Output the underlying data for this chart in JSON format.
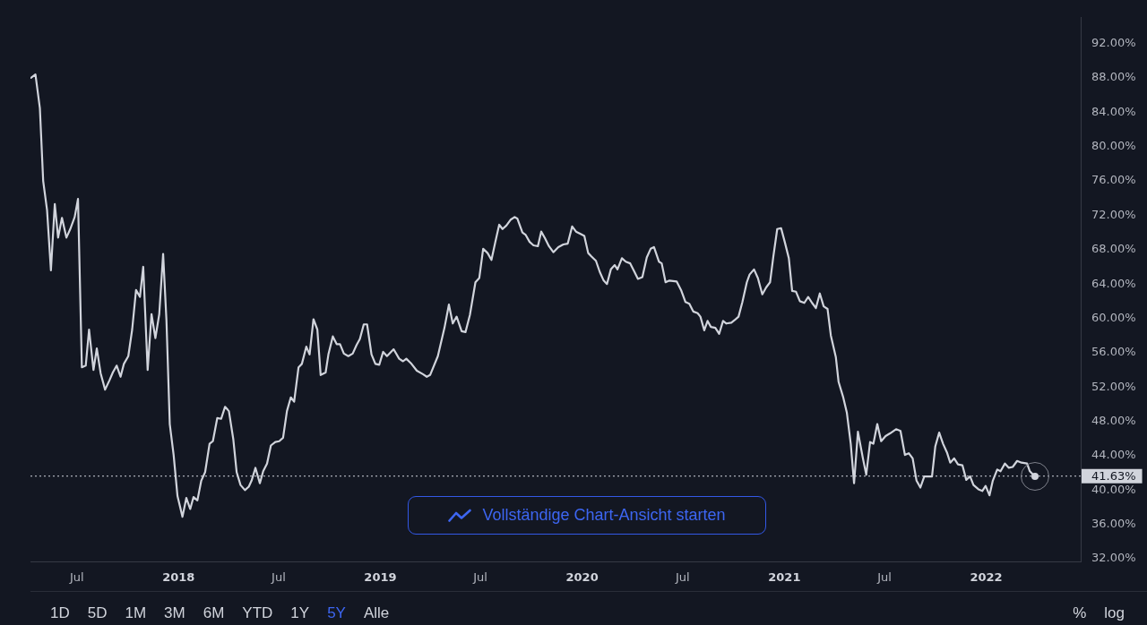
{
  "chart_data": {
    "type": "line",
    "x": [
      "2017-04-09",
      "2017-04-17",
      "2017-04-25",
      "2017-05-01",
      "2017-05-08",
      "2017-05-15",
      "2017-05-22",
      "2017-05-28",
      "2017-06-04",
      "2017-06-12",
      "2017-06-19",
      "2017-06-27",
      "2017-07-03",
      "2017-07-10",
      "2017-07-17",
      "2017-07-23",
      "2017-07-31",
      "2017-08-06",
      "2017-08-13",
      "2017-08-21",
      "2017-08-29",
      "2017-09-04",
      "2017-09-11",
      "2017-09-18",
      "2017-09-24",
      "2017-10-02",
      "2017-10-09",
      "2017-10-16",
      "2017-10-23",
      "2017-10-29",
      "2017-11-06",
      "2017-11-13",
      "2017-11-20",
      "2017-11-27",
      "2017-12-04",
      "2017-12-10",
      "2017-12-16",
      "2017-12-23",
      "2017-12-30",
      "2018-01-08",
      "2018-01-15",
      "2018-01-22",
      "2018-01-28",
      "2018-02-04",
      "2018-02-11",
      "2018-02-18",
      "2018-02-26",
      "2018-03-04",
      "2018-03-12",
      "2018-03-19",
      "2018-03-26",
      "2018-04-02",
      "2018-04-10",
      "2018-04-16",
      "2018-04-23",
      "2018-05-01",
      "2018-05-08",
      "2018-05-13",
      "2018-05-20",
      "2018-05-28",
      "2018-06-03",
      "2018-06-10",
      "2018-06-17",
      "2018-06-25",
      "2018-07-02",
      "2018-07-09",
      "2018-07-16",
      "2018-07-23",
      "2018-07-29",
      "2018-08-06",
      "2018-08-12",
      "2018-08-20",
      "2018-08-26",
      "2018-09-02",
      "2018-09-09",
      "2018-09-15",
      "2018-09-24",
      "2018-09-29",
      "2018-10-07",
      "2018-10-14",
      "2018-10-20",
      "2018-10-27",
      "2018-11-04",
      "2018-11-12",
      "2018-11-19",
      "2018-11-25",
      "2018-12-02",
      "2018-12-08",
      "2018-12-16",
      "2018-12-23",
      "2018-12-30",
      "2019-01-06",
      "2019-01-13",
      "2019-01-25",
      "2019-02-04",
      "2019-02-11",
      "2019-02-17",
      "2019-02-25",
      "2019-03-08",
      "2019-03-19",
      "2019-03-26",
      "2019-04-01",
      "2019-04-15",
      "2019-04-27",
      "2019-05-05",
      "2019-05-12",
      "2019-05-19",
      "2019-05-28",
      "2019-06-04",
      "2019-06-12",
      "2019-06-22",
      "2019-06-29",
      "2019-07-06",
      "2019-07-14",
      "2019-07-21",
      "2019-07-28",
      "2019-08-04",
      "2019-08-10",
      "2019-08-17",
      "2019-08-25",
      "2019-09-01",
      "2019-09-06",
      "2019-09-15",
      "2019-09-21",
      "2019-09-28",
      "2019-10-05",
      "2019-10-13",
      "2019-10-19",
      "2019-10-26",
      "2019-11-02",
      "2019-11-10",
      "2019-11-19",
      "2019-11-28",
      "2019-12-06",
      "2019-12-14",
      "2019-12-21",
      "2019-12-30",
      "2020-01-05",
      "2020-01-12",
      "2020-01-18",
      "2020-01-26",
      "2020-02-02",
      "2020-02-09",
      "2020-02-15",
      "2020-02-22",
      "2020-02-29",
      "2020-03-05",
      "2020-03-13",
      "2020-03-20",
      "2020-03-28",
      "2020-04-04",
      "2020-04-11",
      "2020-04-19",
      "2020-04-27",
      "2020-05-04",
      "2020-05-10",
      "2020-05-19",
      "2020-05-24",
      "2020-05-31",
      "2020-06-07",
      "2020-06-20",
      "2020-06-28",
      "2020-07-06",
      "2020-07-13",
      "2020-07-20",
      "2020-07-28",
      "2020-08-02",
      "2020-08-09",
      "2020-08-15",
      "2020-08-21",
      "2020-08-29",
      "2020-09-05",
      "2020-09-12",
      "2020-09-18",
      "2020-09-27",
      "2020-10-03",
      "2020-10-10",
      "2020-10-17",
      "2020-10-25",
      "2020-10-30",
      "2020-11-07",
      "2020-11-14",
      "2020-11-22",
      "2020-11-29",
      "2020-12-06",
      "2020-12-12",
      "2020-12-19",
      "2020-12-26",
      "2021-01-02",
      "2021-01-09",
      "2021-01-15",
      "2021-01-22",
      "2021-01-29",
      "2021-02-06",
      "2021-02-13",
      "2021-02-20",
      "2021-02-27",
      "2021-03-06",
      "2021-03-13",
      "2021-03-20",
      "2021-03-26",
      "2021-04-04",
      "2021-04-09",
      "2021-04-17",
      "2021-04-24",
      "2021-05-01",
      "2021-05-07",
      "2021-05-14",
      "2021-05-23",
      "2021-05-29",
      "2021-06-05",
      "2021-06-11",
      "2021-06-18",
      "2021-06-25",
      "2021-07-03",
      "2021-07-11",
      "2021-07-22",
      "2021-07-30",
      "2021-08-07",
      "2021-08-14",
      "2021-08-21",
      "2021-08-28",
      "2021-09-04",
      "2021-09-11",
      "2021-09-18",
      "2021-09-25",
      "2021-10-01",
      "2021-10-08",
      "2021-10-15",
      "2021-10-22",
      "2021-10-28",
      "2021-11-04",
      "2021-11-11",
      "2021-11-19",
      "2021-11-26",
      "2021-12-03",
      "2021-12-09",
      "2021-12-18",
      "2021-12-25",
      "2021-12-31",
      "2022-01-07",
      "2022-01-13",
      "2022-01-21",
      "2022-01-27",
      "2022-02-04",
      "2022-02-11",
      "2022-02-18",
      "2022-02-26",
      "2022-03-06",
      "2022-03-16",
      "2022-03-21",
      "2022-03-30"
    ],
    "series": [
      {
        "color": "#d1d4dc",
        "values": [
          88.0,
          88.4,
          84.5,
          76.0,
          72.6,
          65.6,
          73.3,
          69.4,
          71.7,
          69.4,
          70.4,
          71.8,
          73.9,
          54.3,
          54.5,
          58.7,
          54.0,
          56.5,
          53.6,
          51.7,
          52.8,
          53.7,
          54.5,
          53.2,
          54.7,
          55.6,
          58.7,
          63.3,
          62.5,
          66.0,
          54.0,
          60.5,
          57.7,
          60.5,
          67.5,
          59.8,
          47.7,
          44.1,
          39.3,
          36.9,
          39.1,
          37.8,
          39.2,
          38.8,
          41.1,
          42.1,
          45.4,
          45.7,
          48.4,
          48.3,
          49.7,
          49.2,
          45.9,
          42.1,
          40.6,
          40.0,
          40.4,
          41.1,
          42.6,
          40.8,
          42.2,
          43.1,
          45.2,
          45.6,
          45.7,
          46.1,
          49.2,
          50.8,
          50.3,
          54.3,
          54.7,
          56.7,
          55.8,
          59.9,
          58.7,
          53.4,
          53.7,
          55.8,
          57.9,
          57.0,
          57.0,
          55.9,
          55.6,
          55.9,
          56.9,
          57.6,
          59.3,
          59.3,
          55.8,
          54.7,
          54.6,
          56.1,
          55.6,
          56.4,
          55.3,
          55.0,
          55.3,
          54.8,
          53.9,
          53.5,
          53.2,
          53.4,
          55.6,
          58.9,
          61.6,
          59.4,
          60.2,
          58.5,
          58.4,
          60.4,
          64.2,
          64.7,
          68.1,
          67.6,
          66.8,
          68.9,
          70.9,
          70.4,
          70.8,
          71.5,
          71.8,
          71.6,
          70.0,
          69.7,
          68.9,
          68.5,
          68.4,
          70.1,
          69.3,
          68.4,
          67.7,
          68.3,
          68.6,
          68.7,
          70.7,
          70.1,
          69.8,
          69.6,
          67.6,
          67.2,
          66.7,
          65.4,
          64.4,
          64.0,
          65.7,
          66.2,
          65.7,
          67.0,
          66.6,
          66.4,
          65.5,
          64.6,
          64.8,
          67.1,
          68.1,
          68.3,
          66.6,
          66.4,
          64.2,
          64.4,
          64.3,
          63.3,
          61.9,
          61.7,
          60.8,
          60.6,
          60.2,
          58.6,
          59.7,
          59.0,
          58.9,
          58.2,
          59.7,
          59.4,
          59.5,
          59.8,
          60.2,
          61.9,
          64.2,
          65.1,
          65.7,
          64.7,
          62.8,
          63.6,
          64.2,
          67.2,
          70.4,
          70.5,
          68.8,
          67.0,
          63.2,
          63.1,
          62.0,
          61.8,
          62.5,
          61.8,
          61.2,
          62.9,
          61.4,
          61.1,
          58.0,
          55.5,
          52.6,
          50.9,
          49.0,
          45.4,
          40.8,
          46.8,
          43.7,
          41.8,
          45.6,
          45.4,
          47.7,
          45.7,
          46.3,
          46.6,
          47.1,
          46.9,
          44.1,
          44.3,
          43.7,
          41.1,
          40.3,
          41.6,
          41.6,
          41.6,
          45.1,
          46.7,
          45.4,
          44.4,
          43.2,
          43.7,
          43.0,
          42.9,
          41.2,
          41.6,
          40.6,
          40.1,
          39.9,
          40.5,
          39.4,
          41.1,
          42.4,
          42.2,
          43.1,
          42.6,
          42.7,
          43.4,
          43.2,
          43.1,
          42.2,
          41.6
        ]
      }
    ],
    "xlim": [
      "2017-04-08",
      "2022-06-21"
    ],
    "xticks": [
      {
        "value": "2017-07-01",
        "label": "Jul"
      },
      {
        "value": "2018-01-01",
        "label": "2018"
      },
      {
        "value": "2018-07-01",
        "label": "Jul"
      },
      {
        "value": "2019-01-01",
        "label": "2019"
      },
      {
        "value": "2019-07-01",
        "label": "Jul"
      },
      {
        "value": "2020-01-01",
        "label": "2020"
      },
      {
        "value": "2020-07-01",
        "label": "Jul"
      },
      {
        "value": "2021-01-01",
        "label": "2021"
      },
      {
        "value": "2021-07-01",
        "label": "Jul"
      },
      {
        "value": "2022-01-01",
        "label": "2022"
      }
    ],
    "ylim": [
      31.7,
      95
    ],
    "yticks": [
      {
        "value": 32,
        "label": "32.00%"
      },
      {
        "value": 36,
        "label": "36.00%"
      },
      {
        "value": 40,
        "label": "40.00%"
      },
      {
        "value": 44,
        "label": "44.00%"
      },
      {
        "value": 48,
        "label": "48.00%"
      },
      {
        "value": 52,
        "label": "52.00%"
      },
      {
        "value": 56,
        "label": "56.00%"
      },
      {
        "value": 60,
        "label": "60.00%"
      },
      {
        "value": 64,
        "label": "64.00%"
      },
      {
        "value": 68,
        "label": "68.00%"
      },
      {
        "value": 72,
        "label": "72.00%"
      },
      {
        "value": 76,
        "label": "76.00%"
      },
      {
        "value": 80,
        "label": "80.00%"
      },
      {
        "value": 84,
        "label": "84.00%"
      },
      {
        "value": 88,
        "label": "88.00%"
      },
      {
        "value": 92,
        "label": "92.00%"
      }
    ],
    "ref_lines": [
      {
        "axis": "y",
        "value": 41.63,
        "label": "41.63%",
        "line_style": "dotted",
        "color": "#d1d4dc"
      }
    ],
    "annotations": [
      "Vollständige Chart-Ansicht starten",
      "1D",
      "5D",
      "1M",
      "3M",
      "6M",
      "YTD",
      "1Y",
      "5Y",
      "Alle",
      "%",
      "log"
    ]
  }
}
